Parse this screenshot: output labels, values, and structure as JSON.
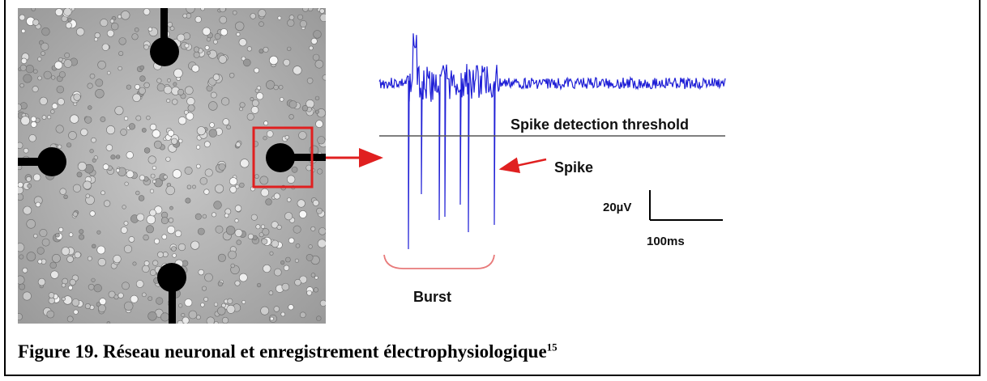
{
  "figure": {
    "caption": "Figure 19. Réseau neuronal et enregistrement électrophysiologique",
    "reference": "15",
    "colors": {
      "trace": "#1f1fd6",
      "arrow": "#e02020",
      "burst_bracket": "#e87a7a",
      "electrode": "#000000"
    }
  },
  "recording": {
    "threshold_label": "Spike detection threshold",
    "spike_label": "Spike",
    "burst_label": "Burst",
    "scale_bar": {
      "voltage_label": "20µV",
      "time_label": "100ms"
    }
  }
}
